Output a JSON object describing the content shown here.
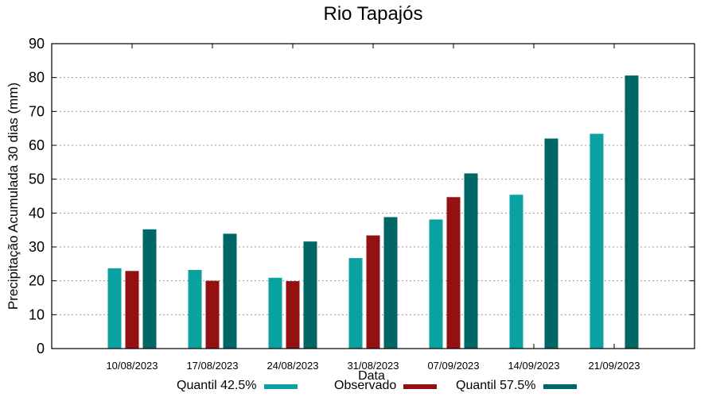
{
  "chart_data": {
    "type": "bar",
    "title": "Rio Tapajós",
    "xlabel": "Data",
    "ylabel": "Precipitação Acumulada 30 dias (mm)",
    "ylim": [
      0,
      90
    ],
    "yticks": [
      0,
      10,
      20,
      30,
      40,
      50,
      60,
      70,
      80,
      90
    ],
    "grid": "horizontal-dotted",
    "grid_color": "#999999",
    "axis_color": "#000000",
    "legend_position": "bottom",
    "categories": [
      "10/08/2023",
      "17/08/2023",
      "24/08/2023",
      "31/08/2023",
      "07/09/2023",
      "14/09/2023",
      "21/09/2023"
    ],
    "series": [
      {
        "name": "Quantil 42.5%",
        "color": "#0AA2A0",
        "values": [
          23.7,
          23.2,
          20.9,
          26.7,
          38.1,
          45.4,
          63.4
        ]
      },
      {
        "name": "Observado",
        "color": "#951010",
        "values": [
          22.9,
          20.0,
          19.9,
          33.4,
          44.7,
          null,
          null
        ]
      },
      {
        "name": "Quantil 57.5%",
        "color": "#006666",
        "values": [
          35.2,
          33.9,
          31.6,
          38.8,
          51.7,
          62.0,
          80.6
        ]
      }
    ]
  }
}
